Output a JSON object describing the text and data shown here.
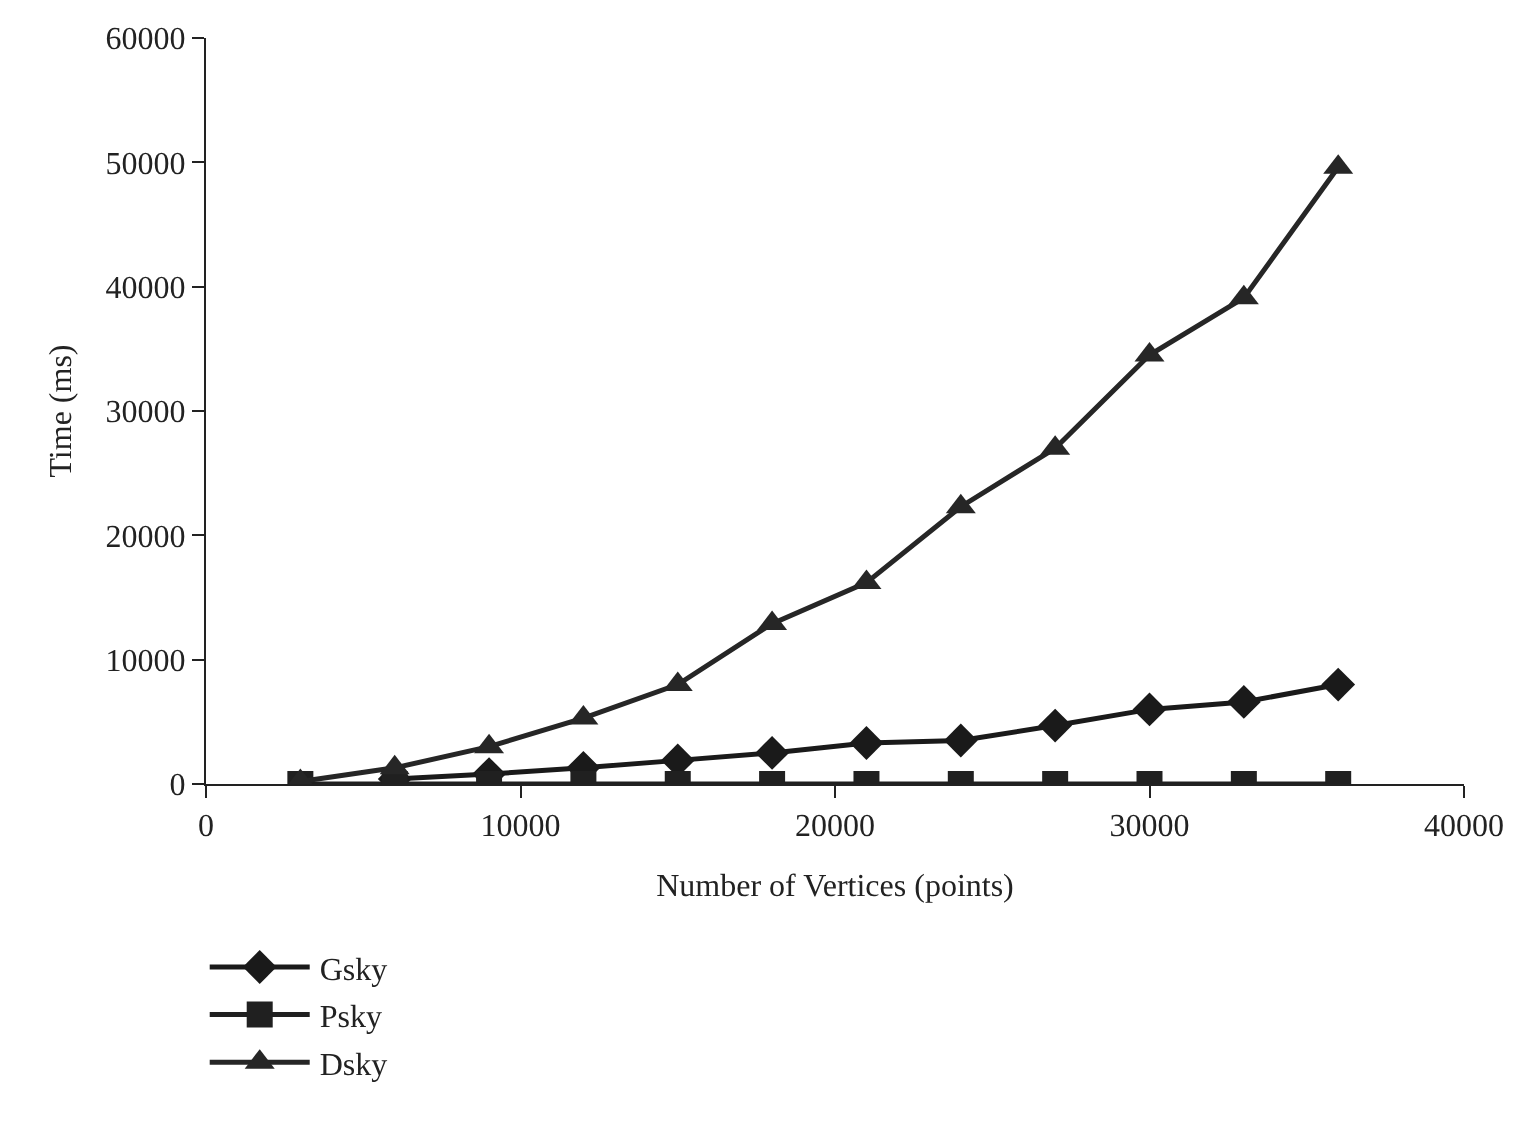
{
  "chart_data": {
    "type": "line",
    "xlabel": "Number of Vertices (points)",
    "ylabel": "Time (ms)",
    "x": [
      3000,
      6000,
      9000,
      12000,
      15000,
      18000,
      21000,
      24000,
      27000,
      30000,
      33000,
      36000
    ],
    "xlim": [
      0,
      40000
    ],
    "xticks": [
      0,
      10000,
      20000,
      30000,
      40000
    ],
    "ylim": [
      0,
      60000
    ],
    "yticks": [
      0,
      10000,
      20000,
      30000,
      40000,
      50000,
      60000
    ],
    "legend": "bottom left",
    "series": [
      {
        "name": "Gsky",
        "color": "#1a1a1a",
        "marker": "diamond",
        "values": [
          null,
          400,
          800,
          1300,
          1900,
          2500,
          3300,
          3500,
          4700,
          6000,
          6600,
          8000
        ]
      },
      {
        "name": "Psky",
        "color": "#202020",
        "marker": "square",
        "values": [
          0,
          0,
          0,
          0,
          0,
          0,
          0,
          0,
          0,
          0,
          0,
          0
        ]
      },
      {
        "name": "Dsky",
        "color": "#262626",
        "marker": "triangle",
        "values": [
          200,
          1300,
          3000,
          5300,
          8000,
          12900,
          16200,
          22300,
          27000,
          34500,
          39100,
          49600
        ]
      }
    ]
  }
}
